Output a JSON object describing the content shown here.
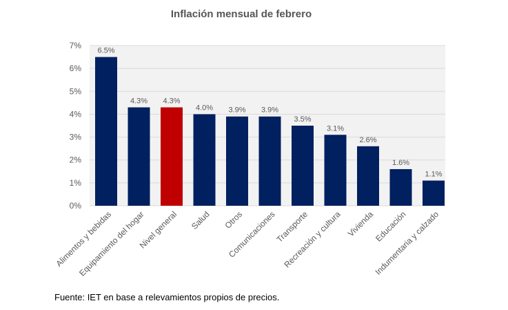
{
  "chart_data": {
    "type": "bar",
    "title": "Inflación mensual de febrero",
    "categories": [
      "Alimentos y bebidas",
      "Equipamiento del hogar",
      "Nivel general",
      "Salud",
      "Otros",
      "Comunicaciones",
      "Transporte",
      "Recreación y cultura",
      "Vivienda",
      "Educación",
      "Indumentaria y calzado"
    ],
    "values": [
      6.5,
      4.3,
      4.3,
      4.0,
      3.9,
      3.9,
      3.5,
      3.1,
      2.6,
      1.6,
      1.1
    ],
    "data_labels": [
      "6.5%",
      "4.3%",
      "4.3%",
      "4.0%",
      "3.9%",
      "3.9%",
      "3.5%",
      "3.1%",
      "2.6%",
      "1.6%",
      "1.1%"
    ],
    "yticks": [
      "0%",
      "1%",
      "2%",
      "3%",
      "4%",
      "5%",
      "6%",
      "7%"
    ],
    "ylim": [
      0,
      7
    ],
    "xlabel": "",
    "ylabel": "",
    "grid": true,
    "colors": {
      "bar": "#002060",
      "highlight": "#c00000",
      "plot_background": "#f2f2f2",
      "gridline": "#d9d9d9"
    },
    "highlight_category": "Nivel general"
  },
  "source_note": "Fuente: IET en base a relevamientos propios de precios."
}
